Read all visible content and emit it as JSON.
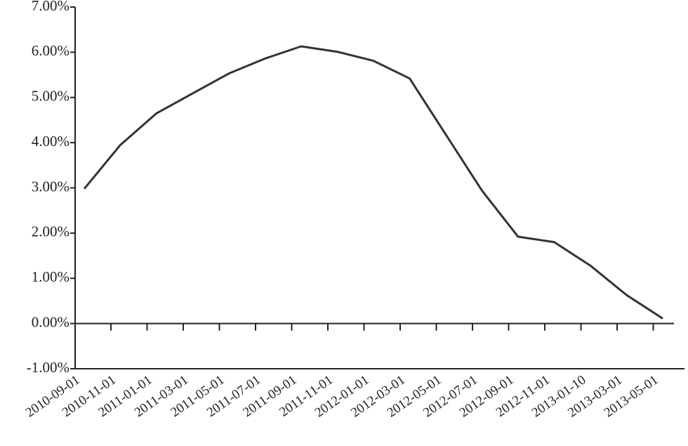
{
  "chart_data": {
    "type": "line",
    "categories": [
      "2010-09-01",
      "2010-11-01",
      "2011-01-01",
      "2011-03-01",
      "2011-05-01",
      "2011-07-01",
      "2011-09-01",
      "2011-11-01",
      "2012-01-01",
      "2012-03-01",
      "2012-05-01",
      "2012-07-01",
      "2012-09-01",
      "2012-11-01",
      "2013-01-10",
      "2013-03-01",
      "2013-05-01"
    ],
    "values": [
      2.98,
      3.95,
      4.65,
      5.09,
      5.53,
      5.86,
      6.13,
      6.01,
      5.81,
      5.42,
      4.18,
      2.94,
      1.92,
      1.8,
      1.28,
      0.63,
      0.11
    ],
    "color": "#333333",
    "ylim": [
      -1,
      7
    ],
    "yticks": [
      {
        "value": -1,
        "label": "-1.00%"
      },
      {
        "value": 0,
        "label": "0.00%"
      },
      {
        "value": 1,
        "label": "1.00%"
      },
      {
        "value": 2,
        "label": "2.00%"
      },
      {
        "value": 3,
        "label": "3.00%"
      },
      {
        "value": 4,
        "label": "4.00%"
      },
      {
        "value": 5,
        "label": "5.00%"
      },
      {
        "value": 6,
        "label": "6.00%"
      },
      {
        "value": 7,
        "label": "7.00%"
      }
    ],
    "grid": false
  }
}
